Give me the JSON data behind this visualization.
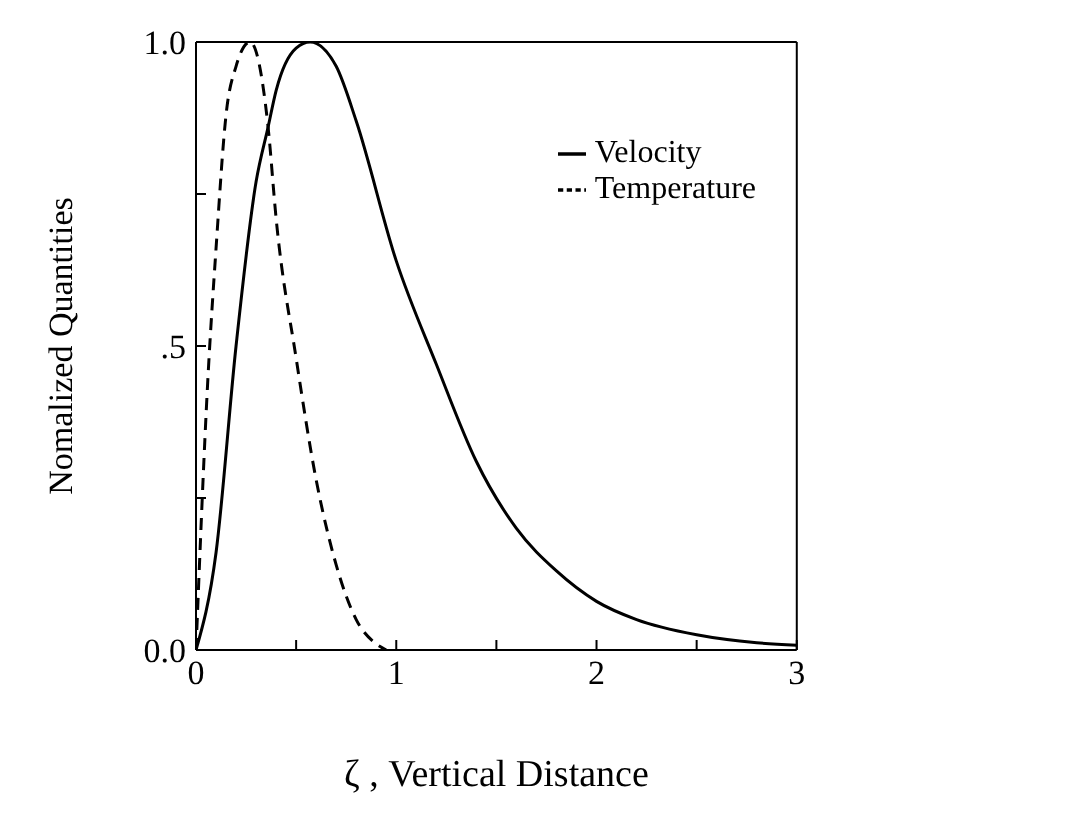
{
  "chart_data": {
    "type": "line",
    "xlabel": "ζ , Vertical Distance",
    "ylabel": "Nomalized Quantities",
    "xlim": [
      0,
      3
    ],
    "ylim": [
      0,
      1
    ],
    "xticks": [
      0,
      {
        "value": 0.5,
        "label": null
      },
      1,
      {
        "value": 1.5,
        "label": null
      },
      2,
      {
        "value": 2.5,
        "label": null
      },
      3
    ],
    "yticks": [
      {
        "value": 0,
        "label": "0.0"
      },
      {
        "value": 0.25,
        "label": null
      },
      {
        "value": 0.5,
        "label": ".5"
      },
      {
        "value": 0.75,
        "label": null
      },
      {
        "value": 1,
        "label": "1.0"
      }
    ],
    "grid": false,
    "legend": "top right",
    "marker": "none",
    "series": [
      {
        "name": "Velocity",
        "color": "#000000",
        "line_style": "solid",
        "x": [
          0,
          0.1,
          0.2,
          0.3,
          0.36,
          0.4,
          0.5,
          0.57,
          0.7,
          0.8,
          1.0,
          1.2,
          1.4,
          1.6,
          1.8,
          2.0,
          2.2,
          2.5,
          2.8,
          3.0
        ],
        "values": [
          0,
          0.16,
          0.5,
          0.77,
          0.86,
          0.92,
          0.99,
          1.0,
          0.96,
          0.87,
          0.64,
          0.47,
          0.31,
          0.2,
          0.13,
          0.08,
          0.05,
          0.025,
          0.012,
          0.008
        ]
      },
      {
        "name": "Temperature",
        "color": "#000000",
        "line_style": "dashed",
        "x": [
          0,
          0.06,
          0.1,
          0.15,
          0.2,
          0.27,
          0.36,
          0.4,
          0.5,
          0.6,
          0.7,
          0.8,
          0.9,
          0.95
        ],
        "values": [
          0,
          0.45,
          0.66,
          0.88,
          0.96,
          1.0,
          0.86,
          0.71,
          0.48,
          0.28,
          0.14,
          0.05,
          0.01,
          0
        ]
      }
    ]
  }
}
